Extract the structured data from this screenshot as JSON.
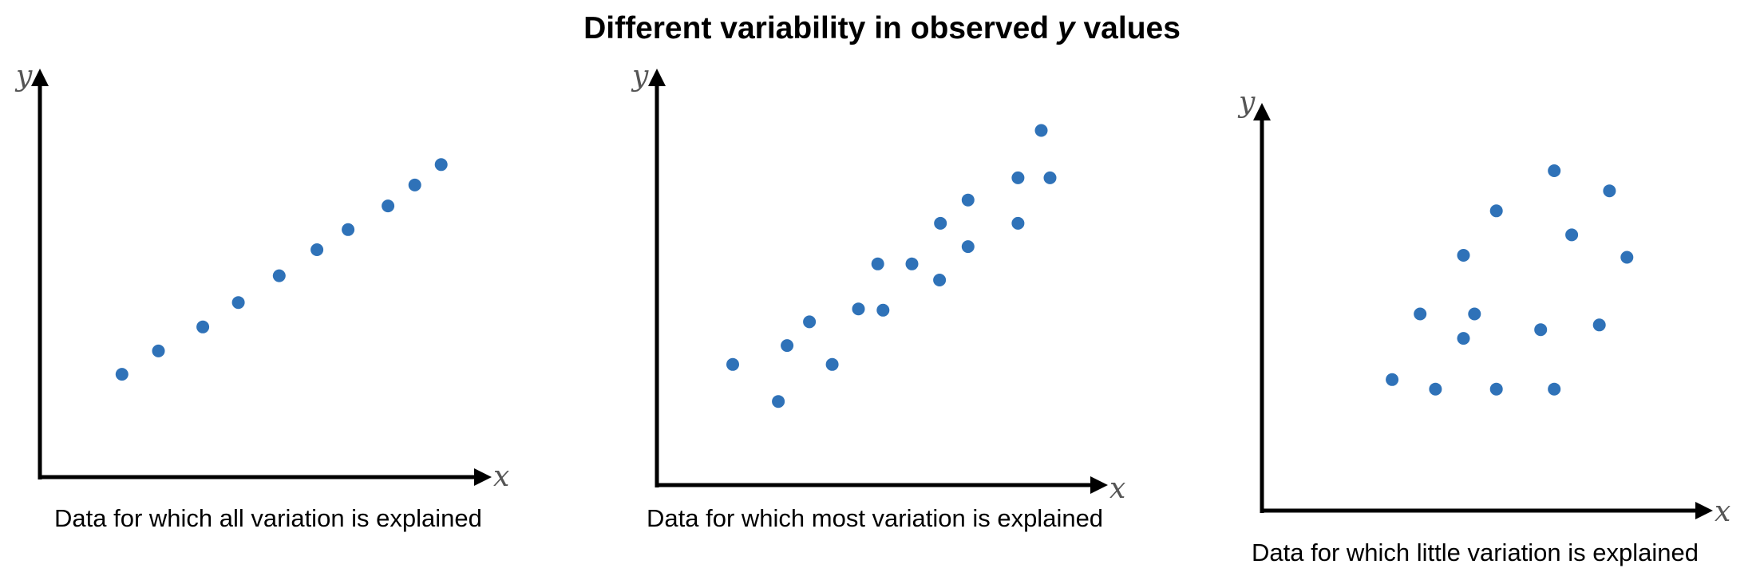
{
  "title": {
    "prefix": "Different variability in observed ",
    "variable": "y",
    "suffix": " values"
  },
  "colors": {
    "point": "#2f72b8",
    "axis": "#000000",
    "axis_label": "#555555"
  },
  "chart_data": [
    {
      "type": "scatter",
      "title": "",
      "caption": "Data for which all variation is explained",
      "xlabel": "x",
      "ylabel": "y",
      "xlim": [
        0,
        100
      ],
      "ylim": [
        0,
        100
      ],
      "grid": false,
      "points": [
        {
          "x": 18.7,
          "y": 26.1
        },
        {
          "x": 27.0,
          "y": 32.0
        },
        {
          "x": 37.1,
          "y": 38.1
        },
        {
          "x": 45.2,
          "y": 44.3
        },
        {
          "x": 54.5,
          "y": 51.1
        },
        {
          "x": 63.1,
          "y": 57.7
        },
        {
          "x": 70.2,
          "y": 62.8
        },
        {
          "x": 79.3,
          "y": 68.8
        },
        {
          "x": 85.4,
          "y": 74.1
        },
        {
          "x": 91.4,
          "y": 79.3
        }
      ]
    },
    {
      "type": "scatter",
      "title": "",
      "caption": "Data for which most variation is explained",
      "xlabel": "x",
      "ylabel": "y",
      "xlim": [
        0,
        100
      ],
      "ylim": [
        0,
        100
      ],
      "grid": false,
      "points": [
        {
          "x": 17.3,
          "y": 30.0
        },
        {
          "x": 27.7,
          "y": 20.8
        },
        {
          "x": 29.7,
          "y": 34.7
        },
        {
          "x": 34.8,
          "y": 40.6
        },
        {
          "x": 40.0,
          "y": 30.0
        },
        {
          "x": 46.0,
          "y": 43.8
        },
        {
          "x": 51.6,
          "y": 43.5
        },
        {
          "x": 50.4,
          "y": 55.0
        },
        {
          "x": 58.2,
          "y": 55.0
        },
        {
          "x": 64.5,
          "y": 51.0
        },
        {
          "x": 64.7,
          "y": 65.1
        },
        {
          "x": 71.0,
          "y": 59.3
        },
        {
          "x": 71.0,
          "y": 70.9
        },
        {
          "x": 82.4,
          "y": 76.4
        },
        {
          "x": 82.4,
          "y": 65.1
        },
        {
          "x": 87.7,
          "y": 88.2
        },
        {
          "x": 89.7,
          "y": 76.4
        }
      ]
    },
    {
      "type": "scatter",
      "title": "",
      "caption": "Data for which little variation is explained",
      "xlabel": "x",
      "ylabel": "y",
      "xlim": [
        0,
        100
      ],
      "ylim": [
        0,
        100
      ],
      "grid": false,
      "points": [
        {
          "x": 29.7,
          "y": 33.3
        },
        {
          "x": 36.1,
          "y": 50.0
        },
        {
          "x": 39.6,
          "y": 30.9
        },
        {
          "x": 46.0,
          "y": 43.8
        },
        {
          "x": 46.0,
          "y": 64.9
        },
        {
          "x": 48.5,
          "y": 50.0
        },
        {
          "x": 53.5,
          "y": 30.9
        },
        {
          "x": 53.5,
          "y": 76.2
        },
        {
          "x": 63.6,
          "y": 46.0
        },
        {
          "x": 66.7,
          "y": 30.9
        },
        {
          "x": 66.7,
          "y": 86.4
        },
        {
          "x": 70.7,
          "y": 70.1
        },
        {
          "x": 77.0,
          "y": 47.2
        },
        {
          "x": 79.3,
          "y": 81.3
        },
        {
          "x": 83.3,
          "y": 64.4
        }
      ]
    }
  ]
}
